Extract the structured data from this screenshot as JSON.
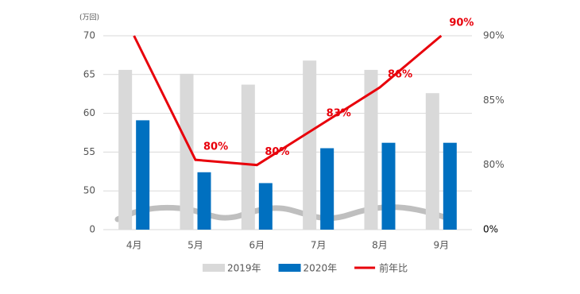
{
  "chart_data": {
    "type": "bar-line",
    "y_unit": "(万回)",
    "categories": [
      "4月",
      "5月",
      "6月",
      "7月",
      "8月",
      "9月"
    ],
    "series": [
      {
        "name": "2019年",
        "color": "#d9d9d9",
        "type": "bar",
        "values": [
          65.6,
          65.1,
          63.7,
          66.8,
          65.6,
          62.6
        ]
      },
      {
        "name": "2020年",
        "color": "#0070c0",
        "type": "bar",
        "values": [
          59.1,
          52.4,
          51.0,
          55.5,
          56.2,
          56.2
        ]
      },
      {
        "name": "前年比",
        "color": "#e8000b",
        "type": "line",
        "axis": "y2",
        "values": [
          90,
          80.4,
          80,
          83,
          86,
          90
        ],
        "value_labels": [
          null,
          "80%",
          "80%",
          "83%",
          "86%",
          "90%"
        ]
      }
    ],
    "ylim": [
      0,
      70
    ],
    "yticks": [
      0,
      50,
      55,
      60,
      65,
      70
    ],
    "y2lim": [
      0,
      90
    ],
    "y2ticks": [
      {
        "value": 0,
        "label": "0%"
      },
      {
        "value": 80,
        "label": "80%"
      },
      {
        "value": 85,
        "label": "85%"
      },
      {
        "value": 90,
        "label": "90%"
      }
    ],
    "axis_break": true,
    "grid": true
  }
}
